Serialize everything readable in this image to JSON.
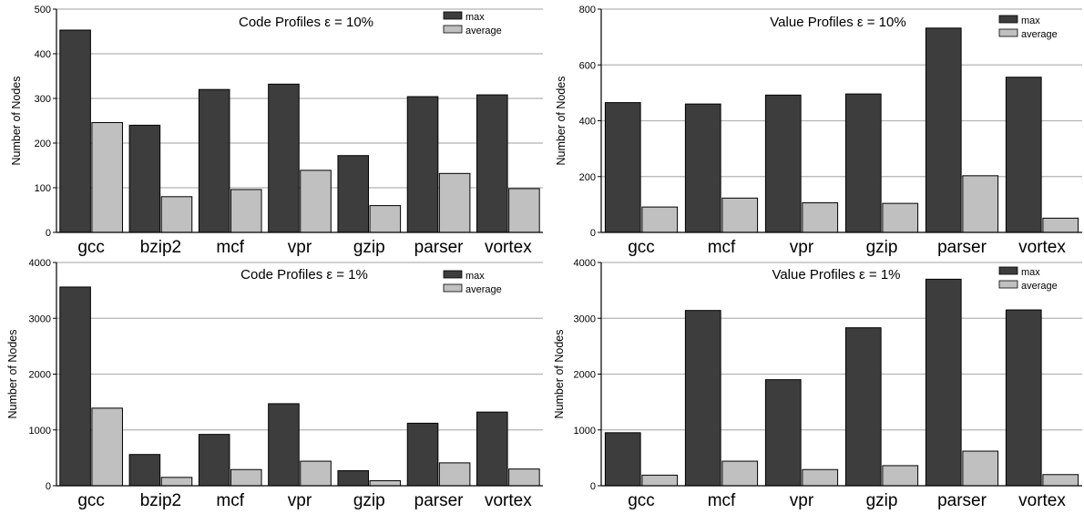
{
  "legend_labels": {
    "max": "max",
    "average": "average"
  },
  "colors": {
    "max": "#3d3d3d",
    "average": "#c0c0c0",
    "grid": "#b4b4b4",
    "axis": "#000000"
  },
  "chart_data": [
    {
      "type": "bar",
      "title": "Code Profiles ε = 10%",
      "ylabel": "Number of Nodes",
      "xlabel": "",
      "ylim": [
        0,
        500
      ],
      "yticks": [
        0,
        100,
        200,
        300,
        400,
        500
      ],
      "grid": true,
      "legend": "top-right",
      "categories": [
        "gcc",
        "bzip2",
        "mcf",
        "vpr",
        "gzip",
        "parser",
        "vortex"
      ],
      "series": [
        {
          "name": "max",
          "values": [
            453,
            240,
            320,
            332,
            172,
            304,
            308
          ]
        },
        {
          "name": "average",
          "values": [
            246,
            80,
            96,
            139,
            60,
            132,
            98
          ]
        }
      ]
    },
    {
      "type": "bar",
      "title": "Value Profiles ε = 10%",
      "ylabel": "Number of Nodes",
      "xlabel": "",
      "ylim": [
        0,
        800
      ],
      "yticks": [
        0,
        200,
        400,
        600,
        800
      ],
      "grid": true,
      "legend": "top-right",
      "categories": [
        "gcc",
        "mcf",
        "vpr",
        "gzip",
        "parser",
        "vortex"
      ],
      "series": [
        {
          "name": "max",
          "values": [
            465,
            460,
            492,
            496,
            732,
            556
          ]
        },
        {
          "name": "average",
          "values": [
            91,
            123,
            106,
            104,
            203,
            51
          ]
        }
      ]
    },
    {
      "type": "bar",
      "title": "Code Profiles ε = 1%",
      "ylabel": "Number of Nodes",
      "xlabel": "",
      "ylim": [
        0,
        4000
      ],
      "yticks": [
        0,
        1000,
        2000,
        3000,
        4000
      ],
      "grid": true,
      "legend": "top-right",
      "categories": [
        "gcc",
        "bzip2",
        "mcf",
        "vpr",
        "gzip",
        "parser",
        "vortex"
      ],
      "series": [
        {
          "name": "max",
          "values": [
            3560,
            560,
            920,
            1470,
            270,
            1120,
            1320
          ]
        },
        {
          "name": "average",
          "values": [
            1390,
            150,
            290,
            440,
            90,
            410,
            300
          ]
        }
      ]
    },
    {
      "type": "bar",
      "title": "Value Profiles ε = 1%",
      "ylabel": "Number of Nodes",
      "xlabel": "",
      "ylim": [
        0,
        4000
      ],
      "yticks": [
        0,
        1000,
        2000,
        3000,
        4000
      ],
      "grid": true,
      "legend": "top-right",
      "categories": [
        "gcc",
        "mcf",
        "vpr",
        "gzip",
        "parser",
        "vortex"
      ],
      "series": [
        {
          "name": "max",
          "values": [
            950,
            3140,
            1900,
            2830,
            3700,
            3150
          ]
        },
        {
          "name": "average",
          "values": [
            190,
            440,
            290,
            360,
            620,
            200
          ]
        }
      ]
    }
  ]
}
